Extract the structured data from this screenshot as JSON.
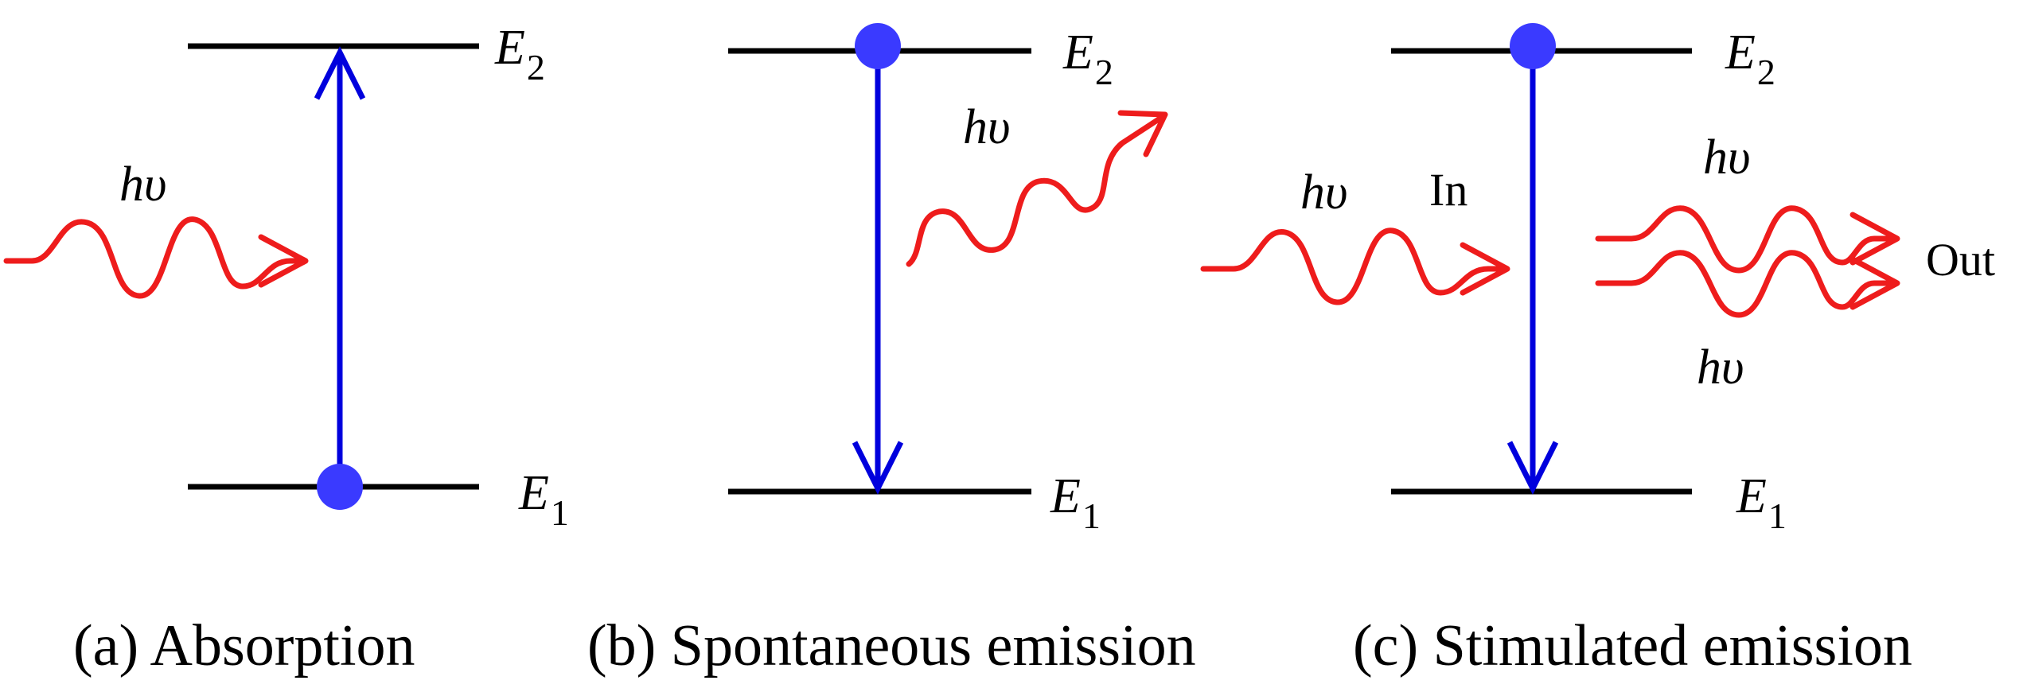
{
  "panels": {
    "absorption": {
      "caption": "(a) Absorption",
      "upper_level": {
        "symbol": "E",
        "subscript": "2"
      },
      "lower_level": {
        "symbol": "E",
        "subscript": "1"
      },
      "photon_label": "hυ"
    },
    "spontaneous": {
      "caption": "(b) Spontaneous emission",
      "upper_level": {
        "symbol": "E",
        "subscript": "2"
      },
      "lower_level": {
        "symbol": "E",
        "subscript": "1"
      },
      "photon_label": "hυ"
    },
    "stimulated": {
      "caption": "(c) Stimulated emission",
      "upper_level": {
        "symbol": "E",
        "subscript": "2"
      },
      "lower_level": {
        "symbol": "E",
        "subscript": "1"
      },
      "incoming_photon_label": "hυ",
      "in_label": "In",
      "outgoing_photon_label_top": "hυ",
      "outgoing_photon_label_bottom": "hυ",
      "out_label": "Out"
    }
  },
  "colors": {
    "energy_level": "#000000",
    "transition_arrow": "#0000dd",
    "photon": "#ee1c1c",
    "electron": "#3a3aff"
  }
}
